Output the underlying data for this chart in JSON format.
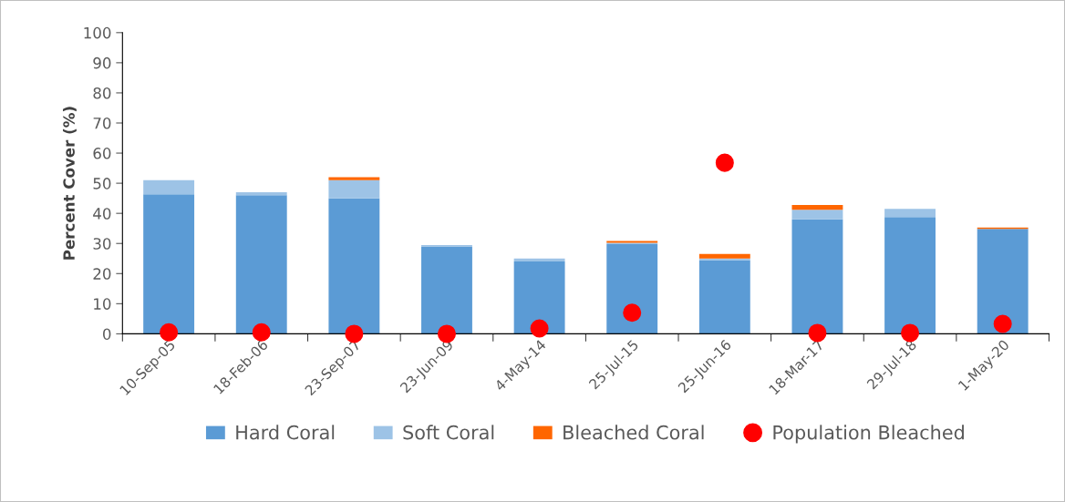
{
  "chart_data": {
    "type": "bar",
    "stacked": true,
    "ylabel": "Percent Cover (%)",
    "categories": [
      "10-Sep-05",
      "18-Feb-06",
      "23-Sep-07",
      "23-Jun-09",
      "4-May-14",
      "25-Jul-15",
      "25-Jun-16",
      "18-Mar-17",
      "29-Jul-18",
      "1-May-20"
    ],
    "series": [
      {
        "name": "Hard Coral",
        "color": "#5b9bd5",
        "values": [
          46.3,
          46,
          45,
          29,
          24,
          29.8,
          24.5,
          38,
          38.8,
          34.8
        ]
      },
      {
        "name": "Soft Coral",
        "color": "#9dc3e6",
        "values": [
          4.7,
          1,
          6,
          0.5,
          1,
          0.4,
          0.5,
          3.2,
          2.7,
          0
        ]
      },
      {
        "name": "Bleached Coral",
        "color": "#ff6600",
        "values": [
          0,
          0,
          1,
          0,
          0,
          0.6,
          1.5,
          1.6,
          0,
          0.5
        ]
      },
      {
        "name": "Population Bleached",
        "type": "scatter",
        "color": "#ff0000",
        "values": [
          0.5,
          0.5,
          0,
          0,
          1.8,
          7,
          56.8,
          0.3,
          0.3,
          3.3
        ]
      }
    ],
    "ylim": [
      0,
      100
    ],
    "yticks": [
      0,
      10,
      20,
      30,
      40,
      50,
      60,
      70,
      80,
      90,
      100
    ],
    "grid": false,
    "legend": "bottom",
    "marker": "circle"
  }
}
